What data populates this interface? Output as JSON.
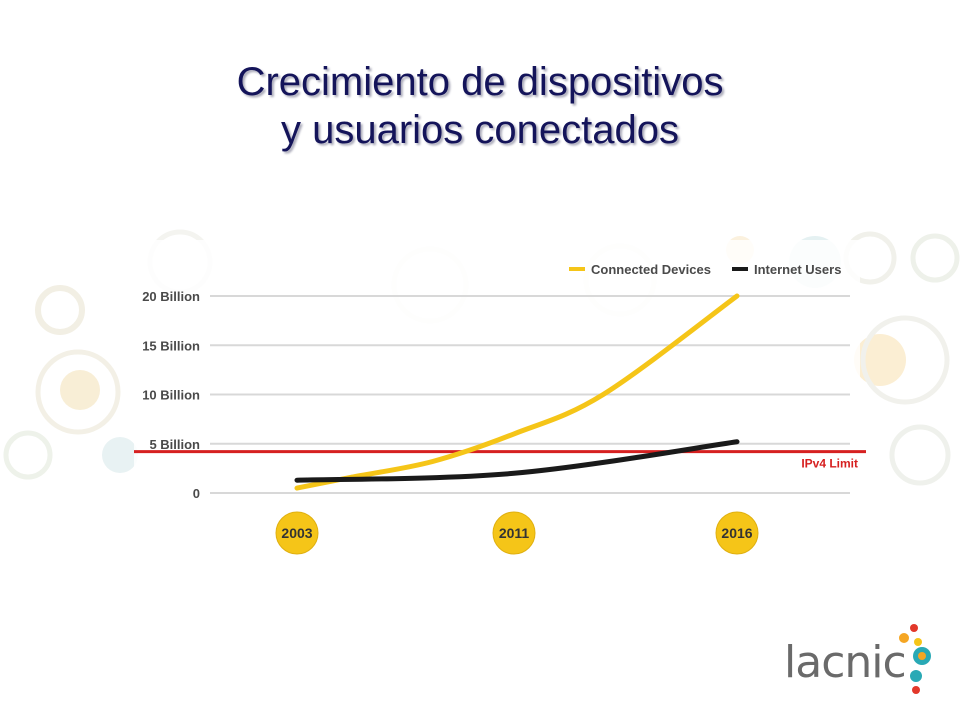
{
  "title": {
    "line1": "Crecimiento de dispositivos",
    "line2": "y usuarios conectados"
  },
  "colors": {
    "title": "#14145a",
    "connected_devices": "#f5c518",
    "internet_users": "#1a1a1a",
    "ipv4_limit": "#d62020",
    "year_badge": "#f5c518"
  },
  "chart_data": {
    "type": "line",
    "x_categories": [
      "2003",
      "2011",
      "2016"
    ],
    "ylim": [
      0,
      20
    ],
    "y_unit": "Billion",
    "y_ticks": [
      {
        "value": 20,
        "label": "20 Billion"
      },
      {
        "value": 15,
        "label": "15 Billion"
      },
      {
        "value": 10,
        "label": "10 Billion"
      },
      {
        "value": 5,
        "label": "5 Billion"
      },
      {
        "value": 0,
        "label": "0"
      }
    ],
    "series": [
      {
        "name": "Connected Devices",
        "color": "#f5c518",
        "points": [
          [
            2003,
            0.5
          ],
          [
            2005,
            1.6
          ],
          [
            2008,
            3.2
          ],
          [
            2011,
            6.0
          ],
          [
            2013,
            10.0
          ],
          [
            2016,
            20.0
          ]
        ]
      },
      {
        "name": "Internet Users",
        "color": "#1a1a1a",
        "points": [
          [
            2003,
            1.3
          ],
          [
            2011,
            2.0
          ],
          [
            2016,
            5.2
          ]
        ]
      }
    ],
    "reference_line": {
      "label": "IPv4 Limit",
      "value": 4.2,
      "color": "#d62020"
    },
    "legend_placement": "top-right",
    "grid": true
  },
  "logo": {
    "text": "lacnic"
  }
}
